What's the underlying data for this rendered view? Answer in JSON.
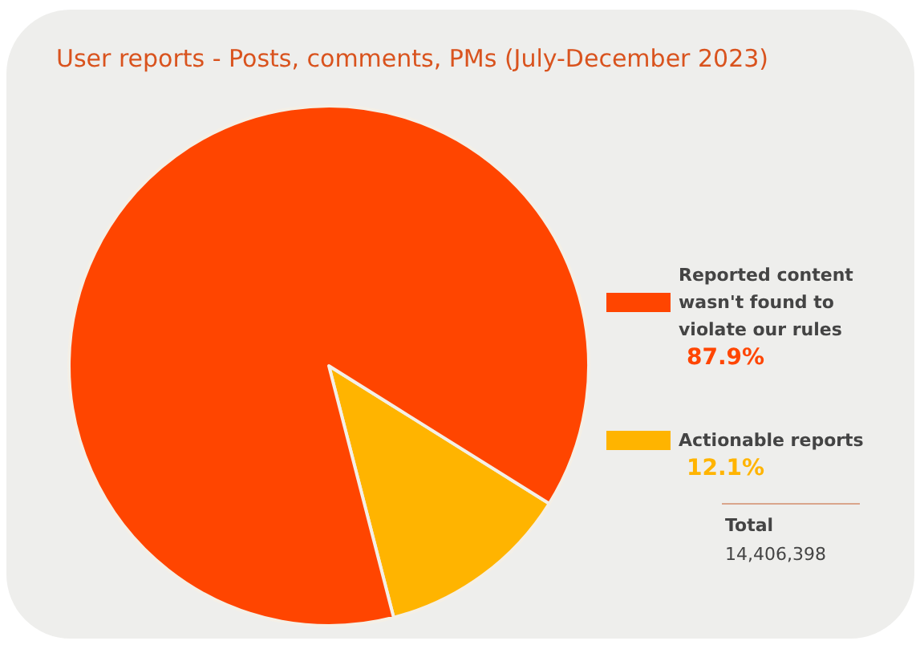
{
  "chart_data": {
    "type": "pie",
    "title": "User reports - Posts, comments, PMs (July-December 2023)",
    "categories": [
      "Reported content wasn't found to violate our rules",
      "Actionable reports"
    ],
    "values": [
      87.9,
      12.1
    ],
    "colors": [
      "#ff4500",
      "#ffb400"
    ],
    "value_labels": [
      "87.9%",
      "12.1%"
    ],
    "legend": "right",
    "annotations": [
      "Total",
      "14,406,398"
    ]
  }
}
